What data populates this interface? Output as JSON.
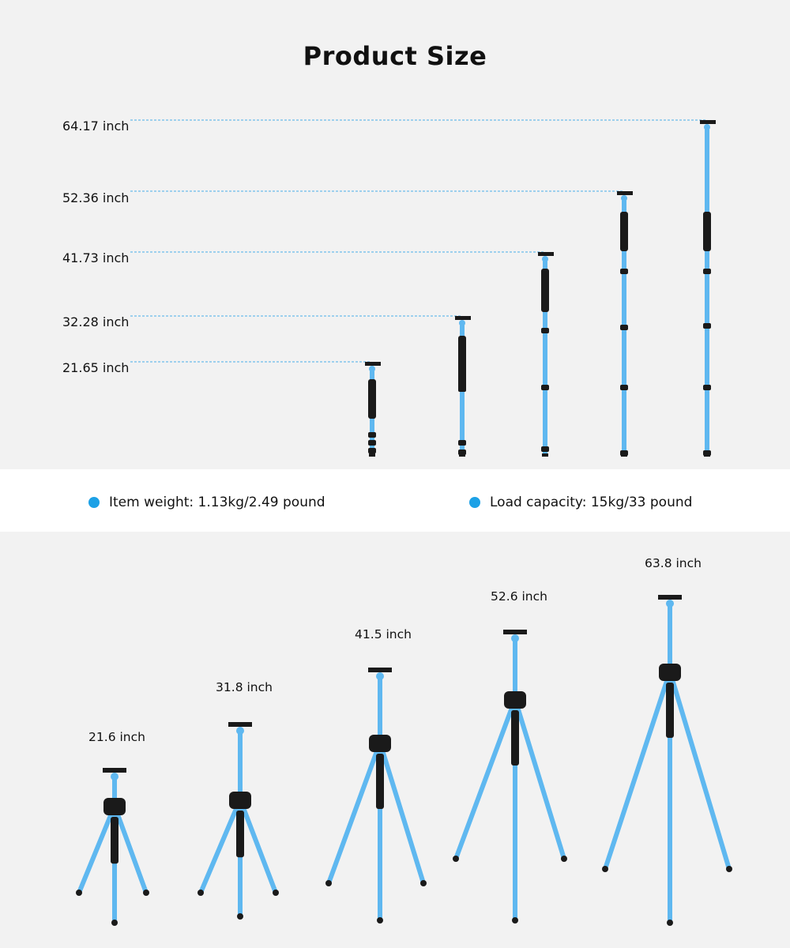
{
  "page": {
    "title": "Product Size"
  },
  "colors": {
    "background": "#f2f2f2",
    "band": "#ffffff",
    "accent_blue": "#1da1e6",
    "tube_blue": "#5fb8f0",
    "dark": "#1a1a1a"
  },
  "heights": [
    {
      "label": "64.17 inch"
    },
    {
      "label": "52.36 inch"
    },
    {
      "label": "41.73 inch"
    },
    {
      "label": "32.28 inch"
    },
    {
      "label": "21.65 inch"
    }
  ],
  "specs": {
    "weight": "Item weight: 1.13kg/2.49 pound",
    "capacity": "Load capacity: 15kg/33 pound"
  },
  "tripods": [
    {
      "label": "21.6 inch"
    },
    {
      "label": "31.8 inch"
    },
    {
      "label": "41.5 inch"
    },
    {
      "label": "52.6 inch"
    },
    {
      "label": "63.8 inch"
    }
  ]
}
